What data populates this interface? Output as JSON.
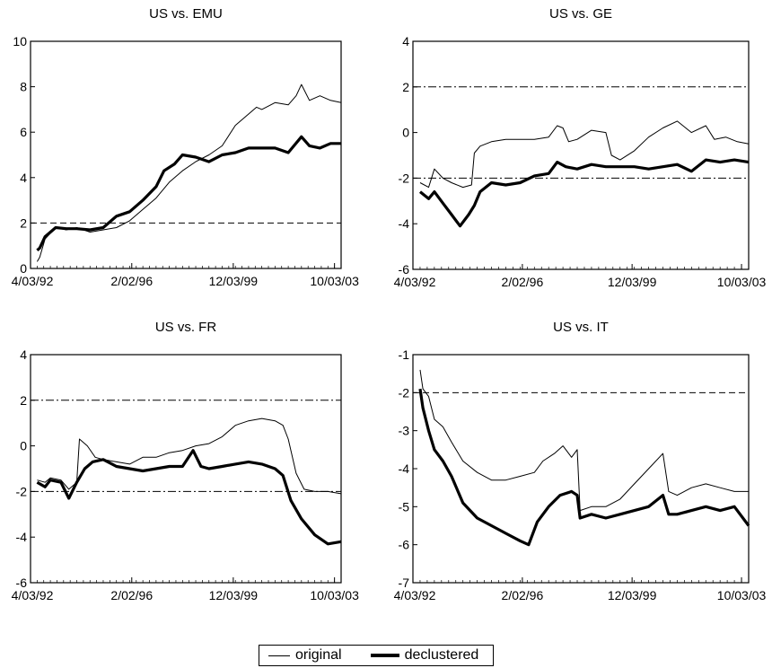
{
  "legend": {
    "original": "original",
    "declustered": "declustered"
  },
  "colors": {
    "line": "#000000"
  },
  "chart_data": [
    {
      "type": "line",
      "title": "US vs. EMU",
      "xticks": [
        "4/03/92",
        "2/02/96",
        "12/03/99",
        "10/03/03"
      ],
      "xrange": [
        1992.25,
        2004.0
      ],
      "ylim": [
        0,
        10
      ],
      "yticks": [
        0,
        2,
        4,
        6,
        8,
        10
      ],
      "reference_lines": [
        2
      ],
      "reference_style": "dashed",
      "series": [
        {
          "name": "original",
          "points": [
            [
              1992.5,
              0.3
            ],
            [
              1992.6,
              0.5
            ],
            [
              1992.8,
              1.3
            ],
            [
              1993.2,
              1.8
            ],
            [
              1993.6,
              1.7
            ],
            [
              1994.0,
              1.8
            ],
            [
              1994.5,
              1.6
            ],
            [
              1995.0,
              1.7
            ],
            [
              1995.5,
              1.8
            ],
            [
              1996.0,
              2.1
            ],
            [
              1996.5,
              2.6
            ],
            [
              1997.0,
              3.1
            ],
            [
              1997.5,
              3.8
            ],
            [
              1998.0,
              4.3
            ],
            [
              1998.5,
              4.7
            ],
            [
              1999.0,
              5.0
            ],
            [
              1999.5,
              5.4
            ],
            [
              2000.0,
              6.3
            ],
            [
              2000.4,
              6.7
            ],
            [
              2000.8,
              7.1
            ],
            [
              2001.0,
              7.0
            ],
            [
              2001.5,
              7.3
            ],
            [
              2002.0,
              7.2
            ],
            [
              2002.3,
              7.6
            ],
            [
              2002.5,
              8.1
            ],
            [
              2002.8,
              7.4
            ],
            [
              2003.2,
              7.6
            ],
            [
              2003.6,
              7.4
            ],
            [
              2004.0,
              7.3
            ]
          ]
        },
        {
          "name": "declustered",
          "points": [
            [
              1992.5,
              0.8
            ],
            [
              1992.6,
              0.9
            ],
            [
              1992.8,
              1.4
            ],
            [
              1993.2,
              1.8
            ],
            [
              1993.6,
              1.75
            ],
            [
              1994.0,
              1.75
            ],
            [
              1994.5,
              1.7
            ],
            [
              1995.0,
              1.8
            ],
            [
              1995.5,
              2.3
            ],
            [
              1996.0,
              2.5
            ],
            [
              1996.5,
              3.0
            ],
            [
              1997.0,
              3.6
            ],
            [
              1997.3,
              4.3
            ],
            [
              1997.7,
              4.6
            ],
            [
              1998.0,
              5.0
            ],
            [
              1998.5,
              4.9
            ],
            [
              1999.0,
              4.7
            ],
            [
              1999.5,
              5.0
            ],
            [
              2000.0,
              5.1
            ],
            [
              2000.5,
              5.3
            ],
            [
              2001.0,
              5.3
            ],
            [
              2001.5,
              5.3
            ],
            [
              2002.0,
              5.1
            ],
            [
              2002.5,
              5.8
            ],
            [
              2002.8,
              5.4
            ],
            [
              2003.2,
              5.3
            ],
            [
              2003.6,
              5.5
            ],
            [
              2004.0,
              5.5
            ]
          ]
        }
      ]
    },
    {
      "type": "line",
      "title": "US vs. GE",
      "xticks": [
        "4/03/92",
        "2/02/96",
        "12/03/99",
        "10/03/03"
      ],
      "xrange": [
        1992.25,
        2004.0
      ],
      "ylim": [
        -6,
        4
      ],
      "yticks": [
        -6,
        -4,
        -2,
        0,
        2,
        4
      ],
      "reference_lines": [
        2,
        -2
      ],
      "reference_style": "dashdot",
      "series": [
        {
          "name": "original",
          "points": [
            [
              1992.5,
              -2.2
            ],
            [
              1992.8,
              -2.4
            ],
            [
              1993.0,
              -1.6
            ],
            [
              1993.3,
              -2.0
            ],
            [
              1993.6,
              -2.2
            ],
            [
              1994.0,
              -2.4
            ],
            [
              1994.3,
              -2.3
            ],
            [
              1994.4,
              -0.9
            ],
            [
              1994.6,
              -0.6
            ],
            [
              1995.0,
              -0.4
            ],
            [
              1995.5,
              -0.3
            ],
            [
              1996.0,
              -0.3
            ],
            [
              1996.5,
              -0.3
            ],
            [
              1997.0,
              -0.2
            ],
            [
              1997.3,
              0.3
            ],
            [
              1997.5,
              0.2
            ],
            [
              1997.7,
              -0.4
            ],
            [
              1998.0,
              -0.3
            ],
            [
              1998.5,
              0.1
            ],
            [
              1999.0,
              0.0
            ],
            [
              1999.2,
              -1.0
            ],
            [
              1999.5,
              -1.2
            ],
            [
              2000.0,
              -0.8
            ],
            [
              2000.5,
              -0.2
            ],
            [
              2001.0,
              0.2
            ],
            [
              2001.5,
              0.5
            ],
            [
              2002.0,
              0.0
            ],
            [
              2002.5,
              0.3
            ],
            [
              2002.8,
              -0.3
            ],
            [
              2003.2,
              -0.2
            ],
            [
              2003.6,
              -0.4
            ],
            [
              2004.0,
              -0.5
            ]
          ]
        },
        {
          "name": "declustered",
          "points": [
            [
              1992.5,
              -2.6
            ],
            [
              1992.8,
              -2.9
            ],
            [
              1993.0,
              -2.6
            ],
            [
              1993.3,
              -3.1
            ],
            [
              1993.6,
              -3.6
            ],
            [
              1993.9,
              -4.1
            ],
            [
              1994.2,
              -3.6
            ],
            [
              1994.4,
              -3.2
            ],
            [
              1994.6,
              -2.6
            ],
            [
              1995.0,
              -2.2
            ],
            [
              1995.5,
              -2.3
            ],
            [
              1996.0,
              -2.2
            ],
            [
              1996.5,
              -1.9
            ],
            [
              1997.0,
              -1.8
            ],
            [
              1997.3,
              -1.3
            ],
            [
              1997.6,
              -1.5
            ],
            [
              1998.0,
              -1.6
            ],
            [
              1998.5,
              -1.4
            ],
            [
              1999.0,
              -1.5
            ],
            [
              1999.5,
              -1.5
            ],
            [
              2000.0,
              -1.5
            ],
            [
              2000.5,
              -1.6
            ],
            [
              2001.0,
              -1.5
            ],
            [
              2001.5,
              -1.4
            ],
            [
              2002.0,
              -1.7
            ],
            [
              2002.5,
              -1.2
            ],
            [
              2003.0,
              -1.3
            ],
            [
              2003.5,
              -1.2
            ],
            [
              2004.0,
              -1.3
            ]
          ]
        }
      ]
    },
    {
      "type": "line",
      "title": "US vs. FR",
      "xticks": [
        "4/03/92",
        "2/02/96",
        "12/03/99",
        "10/03/03"
      ],
      "xrange": [
        1992.25,
        2004.0
      ],
      "ylim": [
        -6,
        4
      ],
      "yticks": [
        -6,
        -4,
        -2,
        0,
        2,
        4
      ],
      "reference_lines": [
        2,
        -2
      ],
      "reference_style": "dashdot",
      "series": [
        {
          "name": "original",
          "points": [
            [
              1992.5,
              -1.5
            ],
            [
              1992.8,
              -1.6
            ],
            [
              1993.0,
              -1.4
            ],
            [
              1993.4,
              -1.5
            ],
            [
              1993.7,
              -1.9
            ],
            [
              1994.0,
              -1.6
            ],
            [
              1994.1,
              0.3
            ],
            [
              1994.4,
              0.0
            ],
            [
              1994.7,
              -0.5
            ],
            [
              1995.0,
              -0.6
            ],
            [
              1995.5,
              -0.7
            ],
            [
              1996.0,
              -0.8
            ],
            [
              1996.5,
              -0.5
            ],
            [
              1997.0,
              -0.5
            ],
            [
              1997.5,
              -0.3
            ],
            [
              1998.0,
              -0.2
            ],
            [
              1998.5,
              0.0
            ],
            [
              1999.0,
              0.1
            ],
            [
              1999.5,
              0.4
            ],
            [
              2000.0,
              0.9
            ],
            [
              2000.5,
              1.1
            ],
            [
              2001.0,
              1.2
            ],
            [
              2001.5,
              1.1
            ],
            [
              2001.8,
              0.9
            ],
            [
              2002.0,
              0.3
            ],
            [
              2002.3,
              -1.2
            ],
            [
              2002.6,
              -1.9
            ],
            [
              2003.0,
              -2.0
            ],
            [
              2003.5,
              -2.0
            ],
            [
              2004.0,
              -2.1
            ]
          ]
        },
        {
          "name": "declustered",
          "points": [
            [
              1992.5,
              -1.6
            ],
            [
              1992.8,
              -1.8
            ],
            [
              1993.0,
              -1.5
            ],
            [
              1993.4,
              -1.6
            ],
            [
              1993.7,
              -2.3
            ],
            [
              1994.0,
              -1.6
            ],
            [
              1994.3,
              -1.0
            ],
            [
              1994.6,
              -0.7
            ],
            [
              1995.0,
              -0.6
            ],
            [
              1995.5,
              -0.9
            ],
            [
              1996.0,
              -1.0
            ],
            [
              1996.5,
              -1.1
            ],
            [
              1997.0,
              -1.0
            ],
            [
              1997.5,
              -0.9
            ],
            [
              1998.0,
              -0.9
            ],
            [
              1998.4,
              -0.2
            ],
            [
              1998.7,
              -0.9
            ],
            [
              1999.0,
              -1.0
            ],
            [
              1999.5,
              -0.9
            ],
            [
              2000.0,
              -0.8
            ],
            [
              2000.5,
              -0.7
            ],
            [
              2001.0,
              -0.8
            ],
            [
              2001.5,
              -1.0
            ],
            [
              2001.8,
              -1.3
            ],
            [
              2002.1,
              -2.4
            ],
            [
              2002.5,
              -3.2
            ],
            [
              2003.0,
              -3.9
            ],
            [
              2003.5,
              -4.3
            ],
            [
              2004.0,
              -4.2
            ]
          ]
        }
      ]
    },
    {
      "type": "line",
      "title": "US vs. IT",
      "xticks": [
        "4/03/92",
        "2/02/96",
        "12/03/99",
        "10/03/03"
      ],
      "xrange": [
        1992.25,
        2004.0
      ],
      "ylim": [
        -7,
        -1
      ],
      "yticks": [
        -7,
        -6,
        -5,
        -4,
        -3,
        -2,
        -1
      ],
      "reference_lines": [
        -2
      ],
      "reference_style": "dashed",
      "series": [
        {
          "name": "original",
          "points": [
            [
              1992.5,
              -1.4
            ],
            [
              1992.6,
              -1.9
            ],
            [
              1992.8,
              -2.1
            ],
            [
              1993.0,
              -2.7
            ],
            [
              1993.3,
              -2.9
            ],
            [
              1993.6,
              -3.3
            ],
            [
              1994.0,
              -3.8
            ],
            [
              1994.5,
              -4.1
            ],
            [
              1995.0,
              -4.3
            ],
            [
              1995.5,
              -4.3
            ],
            [
              1996.0,
              -4.2
            ],
            [
              1996.5,
              -4.1
            ],
            [
              1996.8,
              -3.8
            ],
            [
              1997.2,
              -3.6
            ],
            [
              1997.5,
              -3.4
            ],
            [
              1997.8,
              -3.7
            ],
            [
              1998.0,
              -3.5
            ],
            [
              1998.1,
              -5.1
            ],
            [
              1998.5,
              -5.0
            ],
            [
              1999.0,
              -5.0
            ],
            [
              1999.5,
              -4.8
            ],
            [
              2000.0,
              -4.4
            ],
            [
              2000.5,
              -4.0
            ],
            [
              2001.0,
              -3.6
            ],
            [
              2001.2,
              -4.6
            ],
            [
              2001.5,
              -4.7
            ],
            [
              2002.0,
              -4.5
            ],
            [
              2002.5,
              -4.4
            ],
            [
              2003.0,
              -4.5
            ],
            [
              2003.5,
              -4.6
            ],
            [
              2004.0,
              -4.6
            ]
          ]
        },
        {
          "name": "declustered",
          "points": [
            [
              1992.5,
              -1.9
            ],
            [
              1992.6,
              -2.4
            ],
            [
              1992.8,
              -3.0
            ],
            [
              1993.0,
              -3.5
            ],
            [
              1993.3,
              -3.8
            ],
            [
              1993.6,
              -4.2
            ],
            [
              1994.0,
              -4.9
            ],
            [
              1994.5,
              -5.3
            ],
            [
              1995.0,
              -5.5
            ],
            [
              1995.5,
              -5.7
            ],
            [
              1996.0,
              -5.9
            ],
            [
              1996.3,
              -6.0
            ],
            [
              1996.6,
              -5.4
            ],
            [
              1997.0,
              -5.0
            ],
            [
              1997.4,
              -4.7
            ],
            [
              1997.8,
              -4.6
            ],
            [
              1998.0,
              -4.7
            ],
            [
              1998.1,
              -5.3
            ],
            [
              1998.5,
              -5.2
            ],
            [
              1999.0,
              -5.3
            ],
            [
              1999.5,
              -5.2
            ],
            [
              2000.0,
              -5.1
            ],
            [
              2000.5,
              -5.0
            ],
            [
              2001.0,
              -4.7
            ],
            [
              2001.2,
              -5.2
            ],
            [
              2001.5,
              -5.2
            ],
            [
              2002.0,
              -5.1
            ],
            [
              2002.5,
              -5.0
            ],
            [
              2003.0,
              -5.1
            ],
            [
              2003.5,
              -5.0
            ],
            [
              2004.0,
              -5.5
            ]
          ]
        }
      ]
    }
  ]
}
